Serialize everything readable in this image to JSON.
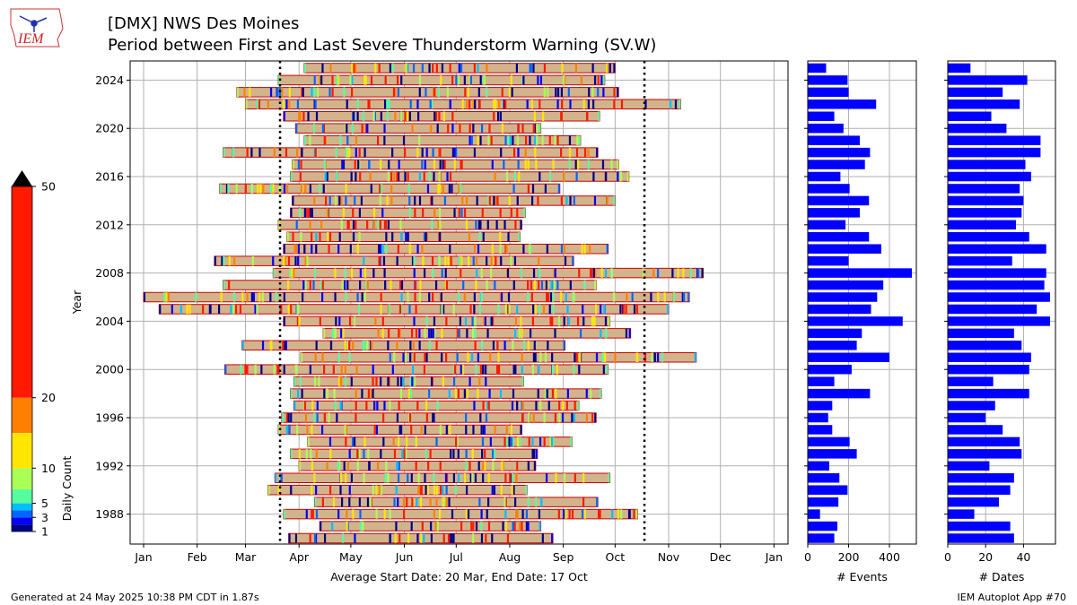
{
  "header": {
    "title": "[DMX] NWS Des Moines",
    "subtitle": "Period between First and Last Severe Thunderstorm Warning (SV.W)",
    "logo_text": "IEM"
  },
  "footer": {
    "generated": "Generated at 24 May 2025 10:38 PM CDT in 1.87s",
    "app": "IEM Autoplot App #70"
  },
  "colors": {
    "bar_fill": "#d2b48c",
    "bar_edge": "#cc0000",
    "grid": "#b0b0b0",
    "count_bars": "#0000ff",
    "avg_line": "#000000"
  },
  "chart_data": [
    {
      "type": "bar",
      "orientation": "horizontal-range",
      "ylabel": "Year",
      "xlabel": "Average Start Date: 20 Mar, End Date: 17 Oct",
      "x_ticks": [
        "Jan",
        "Feb",
        "Mar",
        "Apr",
        "May",
        "Jun",
        "Jul",
        "Aug",
        "Sep",
        "Oct",
        "Nov",
        "Dec",
        "Jan"
      ],
      "y_ticks": [
        "1988",
        "1992",
        "1996",
        "2000",
        "2004",
        "2008",
        "2012",
        "2016",
        "2020",
        "2024"
      ],
      "ylim": [
        1986,
        2025
      ],
      "grid": true,
      "average_start_day_of_year": 79,
      "average_end_day_of_year": 290,
      "periods": [
        {
          "year": 1986,
          "start": 84,
          "end": 237
        },
        {
          "year": 1987,
          "start": 102,
          "end": 230
        },
        {
          "year": 1988,
          "start": 81,
          "end": 286
        },
        {
          "year": 1989,
          "start": 99,
          "end": 263
        },
        {
          "year": 1990,
          "start": 72,
          "end": 222
        },
        {
          "year": 1991,
          "start": 76,
          "end": 270
        },
        {
          "year": 1992,
          "start": 90,
          "end": 227
        },
        {
          "year": 1993,
          "start": 85,
          "end": 228
        },
        {
          "year": 1994,
          "start": 95,
          "end": 248
        },
        {
          "year": 1995,
          "start": 78,
          "end": 219
        },
        {
          "year": 1996,
          "start": 80,
          "end": 262
        },
        {
          "year": 1997,
          "start": 87,
          "end": 252
        },
        {
          "year": 1998,
          "start": 85,
          "end": 265
        },
        {
          "year": 1999,
          "start": 87,
          "end": 220
        },
        {
          "year": 2000,
          "start": 47,
          "end": 269
        },
        {
          "year": 2001,
          "start": 91,
          "end": 320
        },
        {
          "year": 2002,
          "start": 57,
          "end": 244
        },
        {
          "year": 2003,
          "start": 104,
          "end": 282
        },
        {
          "year": 2004,
          "start": 81,
          "end": 270
        },
        {
          "year": 2005,
          "start": 9,
          "end": 304
        },
        {
          "year": 2006,
          "start": 0,
          "end": 316
        },
        {
          "year": 2007,
          "start": 46,
          "end": 262
        },
        {
          "year": 2008,
          "start": 75,
          "end": 324
        },
        {
          "year": 2009,
          "start": 41,
          "end": 249
        },
        {
          "year": 2010,
          "start": 81,
          "end": 269
        },
        {
          "year": 2011,
          "start": 83,
          "end": 218
        },
        {
          "year": 2012,
          "start": 78,
          "end": 219
        },
        {
          "year": 2013,
          "start": 85,
          "end": 221
        },
        {
          "year": 2014,
          "start": 86,
          "end": 273
        },
        {
          "year": 2015,
          "start": 44,
          "end": 241
        },
        {
          "year": 2016,
          "start": 85,
          "end": 281
        },
        {
          "year": 2017,
          "start": 86,
          "end": 275
        },
        {
          "year": 2018,
          "start": 46,
          "end": 263
        },
        {
          "year": 2019,
          "start": 93,
          "end": 253
        },
        {
          "year": 2020,
          "start": 88,
          "end": 230
        },
        {
          "year": 2021,
          "start": 81,
          "end": 264
        },
        {
          "year": 2022,
          "start": 59,
          "end": 311
        },
        {
          "year": 2023,
          "start": 54,
          "end": 275
        },
        {
          "year": 2024,
          "start": 78,
          "end": 267
        },
        {
          "year": 2025,
          "start": 93,
          "end": 273
        }
      ]
    },
    {
      "type": "bar",
      "orientation": "horizontal",
      "xlabel": "# Events",
      "x_ticks": [
        "0",
        "200",
        "400"
      ],
      "xlim": [
        0,
        530
      ],
      "grid": true,
      "years": [
        1986,
        1987,
        1988,
        1989,
        1990,
        1991,
        1992,
        1993,
        1994,
        1995,
        1996,
        1997,
        1998,
        1999,
        2000,
        2001,
        2002,
        2003,
        2004,
        2005,
        2006,
        2007,
        2008,
        2009,
        2010,
        2011,
        2012,
        2013,
        2014,
        2015,
        2016,
        2017,
        2018,
        2019,
        2020,
        2021,
        2022,
        2023,
        2024,
        2025
      ],
      "values": [
        130,
        145,
        60,
        150,
        195,
        155,
        105,
        240,
        205,
        120,
        100,
        120,
        305,
        130,
        215,
        400,
        240,
        265,
        465,
        310,
        340,
        370,
        510,
        200,
        360,
        300,
        185,
        255,
        300,
        205,
        160,
        280,
        305,
        255,
        175,
        130,
        335,
        200,
        195,
        90
      ]
    },
    {
      "type": "bar",
      "orientation": "horizontal",
      "xlabel": "# Dates",
      "x_ticks": [
        "0",
        "20",
        "40"
      ],
      "xlim": [
        0,
        57
      ],
      "grid": true,
      "years": [
        1986,
        1987,
        1988,
        1989,
        1990,
        1991,
        1992,
        1993,
        1994,
        1995,
        1996,
        1997,
        1998,
        1999,
        2000,
        2001,
        2002,
        2003,
        2004,
        2005,
        2006,
        2007,
        2008,
        2009,
        2010,
        2011,
        2012,
        2013,
        2014,
        2015,
        2016,
        2017,
        2018,
        2019,
        2020,
        2021,
        2022,
        2023,
        2024,
        2025
      ],
      "values": [
        35,
        33,
        14,
        27,
        33,
        35,
        22,
        39,
        38,
        29,
        20,
        25,
        43,
        24,
        43,
        44,
        39,
        35,
        54,
        47,
        54,
        51,
        52,
        34,
        52,
        43,
        36,
        39,
        40,
        38,
        44,
        41,
        49,
        49,
        31,
        23,
        38,
        29,
        42,
        12
      ]
    },
    {
      "type": "heatmap",
      "role": "colorbar",
      "label": "Daily Count",
      "ticks": [
        "1",
        "3",
        "5",
        "10",
        "20",
        "50"
      ],
      "levels": [
        1,
        2,
        3,
        4,
        5,
        7,
        10,
        15,
        20,
        50
      ],
      "colors": [
        "#00008b",
        "#0000ff",
        "#0066ff",
        "#00bfff",
        "#55ff9f",
        "#aaff55",
        "#ffe600",
        "#ff8000",
        "#ff1a00",
        "#800000"
      ],
      "extend": "max"
    }
  ]
}
